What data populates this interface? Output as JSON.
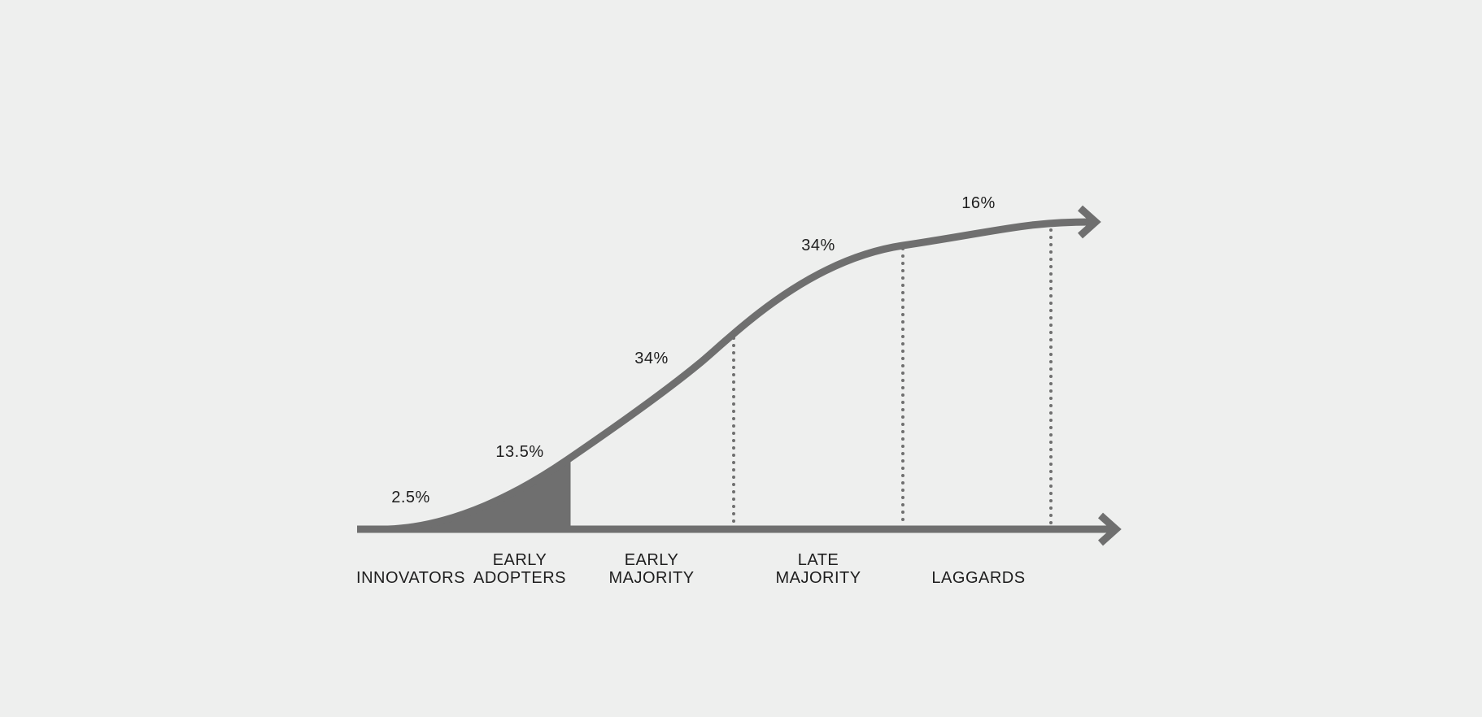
{
  "segments": [
    {
      "percent": "2.5%",
      "label": [
        "INNOVATORS"
      ]
    },
    {
      "percent": "13.5%",
      "label": [
        "EARLY",
        "ADOPTERS"
      ]
    },
    {
      "percent": "34%",
      "label": [
        "EARLY",
        "MAJORITY"
      ]
    },
    {
      "percent": "34%",
      "label": [
        "LATE",
        "MAJORITY"
      ]
    },
    {
      "percent": "16%",
      "label": [
        "LAGGARDS"
      ]
    }
  ]
}
